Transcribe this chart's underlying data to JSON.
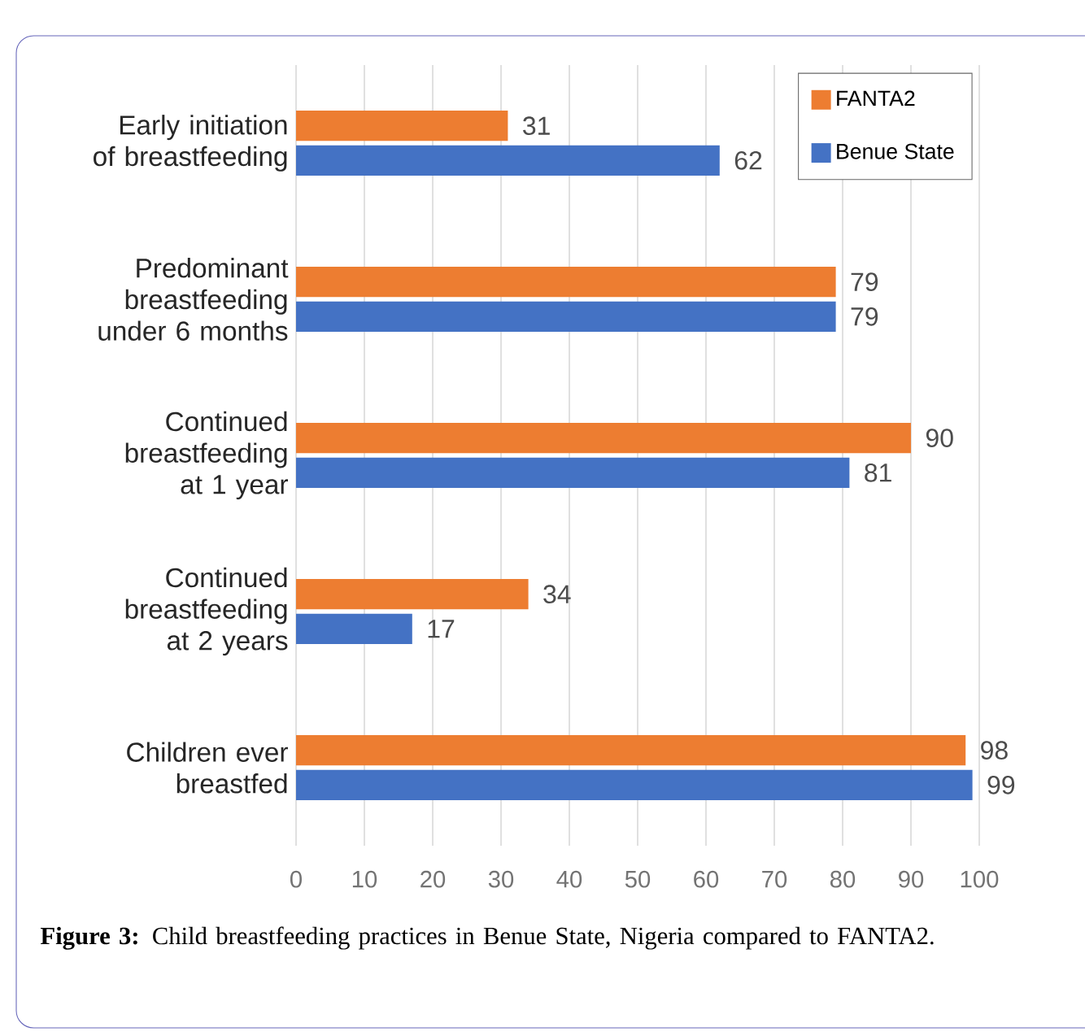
{
  "chart_data": {
    "type": "bar",
    "orientation": "horizontal",
    "categories": [
      "Early initiation of breastfeeding",
      "Predominant breastfeeding under 6 months",
      "Continued breastfeeding at 1 year",
      "Continued breastfeeding at 2 years",
      "Children ever breastfed"
    ],
    "series": [
      {
        "name": "FANTA2",
        "color": "#ed7d31",
        "values": [
          31,
          79,
          90,
          34,
          98
        ]
      },
      {
        "name": "Benue State",
        "color": "#4472c4",
        "values": [
          62,
          79,
          81,
          17,
          99
        ]
      }
    ],
    "xlim": [
      0,
      100
    ],
    "xticks": [
      0,
      10,
      20,
      30,
      40,
      50,
      60,
      70,
      80,
      90,
      100
    ],
    "grid": "x",
    "legend": "top right",
    "data_labels": true,
    "annotations": [
      "**Figure 3:** Child breastfeeding practices in Benue State, Nigeria compared to FANTA2."
    ]
  }
}
